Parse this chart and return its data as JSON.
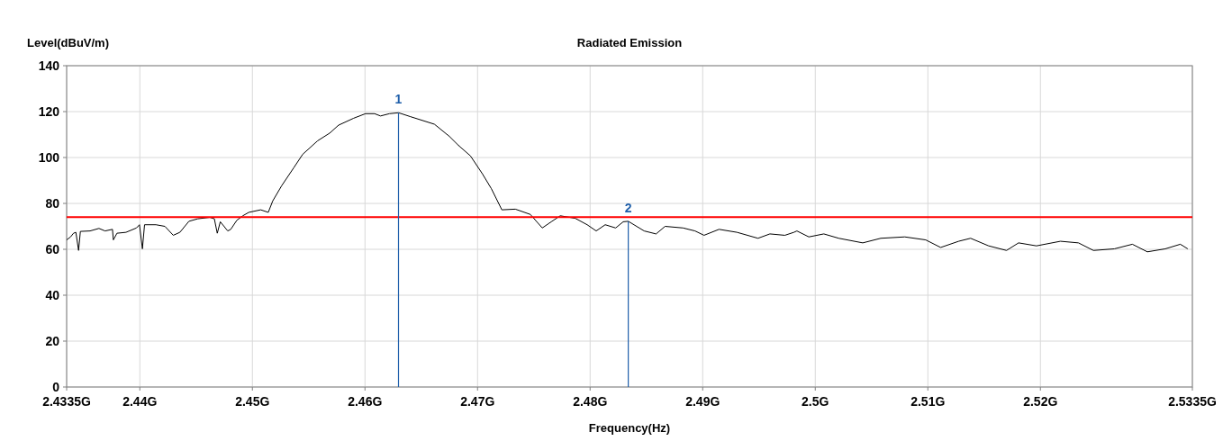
{
  "chart_data": {
    "type": "line",
    "title": "Radiated Emission",
    "xlabel": "Frequency(Hz)",
    "ylabel": "Level(dBuV/m)",
    "xlim": [
      2.4335,
      2.5335
    ],
    "ylim": [
      0,
      140
    ],
    "xticks": [
      {
        "value": 2.4335,
        "label": "2.4335G"
      },
      {
        "value": 2.44,
        "label": "2.44G"
      },
      {
        "value": 2.45,
        "label": "2.45G"
      },
      {
        "value": 2.46,
        "label": "2.46G"
      },
      {
        "value": 2.47,
        "label": "2.47G"
      },
      {
        "value": 2.48,
        "label": "2.48G"
      },
      {
        "value": 2.49,
        "label": "2.49G"
      },
      {
        "value": 2.5,
        "label": "2.5G"
      },
      {
        "value": 2.51,
        "label": "2.51G"
      },
      {
        "value": 2.52,
        "label": "2.52G"
      },
      {
        "value": 2.5335,
        "label": "2.5335G"
      }
    ],
    "yticks": [
      0,
      20,
      40,
      60,
      80,
      100,
      120,
      140
    ],
    "grid": true,
    "marker": "none",
    "line_style": "solid",
    "series": [
      {
        "color": "#000000",
        "x": [
          2.4335,
          2.43385,
          2.43411,
          2.43432,
          2.43456,
          2.43472,
          2.43558,
          2.43637,
          2.43691,
          2.43757,
          2.43765,
          2.43797,
          2.43877,
          2.4397,
          2.43997,
          2.44023,
          2.44042,
          2.44143,
          2.44223,
          2.44297,
          2.44356,
          2.44436,
          2.44515,
          2.44622,
          2.44662,
          2.44688,
          2.44715,
          2.44781,
          2.44808,
          2.44861,
          2.44915,
          2.44968,
          2.45074,
          2.45141,
          2.45181,
          2.4526,
          2.45367,
          2.45447,
          2.4558,
          2.45686,
          2.45766,
          2.45899,
          2.46005,
          2.46085,
          2.46138,
          2.46218,
          2.46298,
          2.46404,
          2.46617,
          2.4675,
          2.4683,
          2.46937,
          2.47043,
          2.47123,
          2.47216,
          2.47336,
          2.47469,
          2.47575,
          2.47655,
          2.47735,
          2.47868,
          2.47974,
          2.48054,
          2.48134,
          2.48227,
          2.48294,
          2.48339,
          2.4848,
          2.48586,
          2.48666,
          2.48826,
          2.48932,
          2.49012,
          2.49145,
          2.49305,
          2.49491,
          2.49597,
          2.4973,
          2.4981,
          2.49837,
          2.49943,
          2.50076,
          2.50209,
          2.50422,
          2.50582,
          2.50795,
          2.50981,
          2.51114,
          2.51274,
          2.5138,
          2.5154,
          2.51699,
          2.51806,
          2.51965,
          2.52178,
          2.52338,
          2.52471,
          2.52657,
          2.52817,
          2.5295,
          2.53109,
          2.53243,
          2.53309
        ],
        "values": [
          64.1,
          65.4,
          67.0,
          67.4,
          59.5,
          67.8,
          68.0,
          69.1,
          68.0,
          68.7,
          64.1,
          67.0,
          67.4,
          69.3,
          70.7,
          60.2,
          70.7,
          70.7,
          70.0,
          66.1,
          67.4,
          72.2,
          73.3,
          73.9,
          73.3,
          67.0,
          72.0,
          68.0,
          68.7,
          72.6,
          74.6,
          76.1,
          77.2,
          76.1,
          81.1,
          87.7,
          95.5,
          101.4,
          107.3,
          110.6,
          114.1,
          117.1,
          119.1,
          119.1,
          118.1,
          119.1,
          119.5,
          117.8,
          114.5,
          109.2,
          105.3,
          100.7,
          92.9,
          86.4,
          77.2,
          77.5,
          75.2,
          69.3,
          72.0,
          74.6,
          73.5,
          70.7,
          68.0,
          70.7,
          69.3,
          72.0,
          72.2,
          68.0,
          66.7,
          70.0,
          69.3,
          68.0,
          66.1,
          68.7,
          67.4,
          64.8,
          66.7,
          66.1,
          67.4,
          68.0,
          65.4,
          66.7,
          64.8,
          62.8,
          64.8,
          65.4,
          64.1,
          60.8,
          63.5,
          64.8,
          61.5,
          59.5,
          62.8,
          61.5,
          63.5,
          62.8,
          59.5,
          60.2,
          62.2,
          58.9,
          60.2,
          62.2,
          60.2
        ]
      }
    ],
    "ref_lines": [
      {
        "axis": "y",
        "value": 74,
        "color": "#ff0000"
      },
      {
        "axis": "x",
        "value": 2.46298,
        "color": "#1f5faa"
      },
      {
        "axis": "x",
        "value": 2.48339,
        "color": "#1f5faa"
      }
    ],
    "annotations": [
      {
        "text": "1",
        "x": 2.46298,
        "y": 119.5
      },
      {
        "text": "2",
        "x": 2.48339,
        "y": 72.2
      }
    ]
  }
}
